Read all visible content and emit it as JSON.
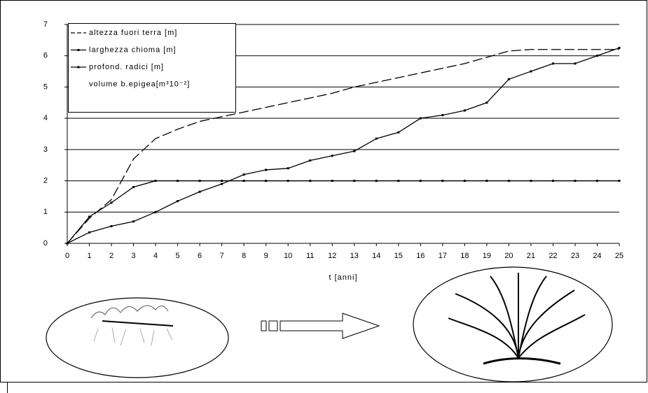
{
  "chart_data": {
    "type": "line",
    "x_label": "t [anni]",
    "x": [
      0,
      1,
      2,
      3,
      4,
      5,
      6,
      7,
      8,
      9,
      10,
      11,
      12,
      13,
      14,
      15,
      16,
      17,
      18,
      19,
      20,
      21,
      22,
      23,
      24,
      25
    ],
    "xlim": [
      0,
      25
    ],
    "xticks": [
      0,
      1,
      2,
      3,
      4,
      5,
      6,
      7,
      8,
      9,
      10,
      11,
      12,
      13,
      14,
      15,
      16,
      17,
      18,
      19,
      20,
      21,
      22,
      23,
      24,
      25
    ],
    "ylim": [
      0,
      7
    ],
    "yticks": [
      0,
      1,
      2,
      3,
      4,
      5,
      6,
      7
    ],
    "grid": true,
    "legend": "top-left",
    "series": [
      {
        "name": "altezza fuori terra [m]",
        "color": "#000000",
        "style": "dashed",
        "values": [
          0,
          0.8,
          1.4,
          2.7,
          3.35,
          3.65,
          3.9,
          4.05,
          4.2,
          4.35,
          4.5,
          4.65,
          4.8,
          5.0,
          5.15,
          5.3,
          5.45,
          5.6,
          5.75,
          5.95,
          6.15,
          6.2,
          6.2,
          6.2,
          6.2,
          6.2
        ]
      },
      {
        "name": "larghezza chioma [m]",
        "color": "#000000",
        "style": "solid",
        "values": [
          0,
          0.35,
          0.55,
          0.7,
          1.0,
          1.35,
          1.65,
          1.9,
          2.2,
          2.35,
          2.4,
          2.65,
          2.8,
          2.95,
          3.35,
          3.55,
          4.0,
          4.1,
          4.25,
          4.5,
          5.25,
          5.5,
          5.75,
          5.75,
          6.0,
          6.25
        ]
      },
      {
        "name": "profond. radici [m]",
        "color": "#000000",
        "style": "solid",
        "values": [
          0,
          0.85,
          1.3,
          1.8,
          2.0,
          2.0,
          2.0,
          2.0,
          2.0,
          2.0,
          2.0,
          2.0,
          2.0,
          2.0,
          2.0,
          2.0,
          2.0,
          2.0,
          2.0,
          2.0,
          2.0,
          2.0,
          2.0,
          2.0,
          2.0,
          2.0
        ]
      },
      {
        "name": "volume b.epigea[m³10⁻²]",
        "color": "#000000",
        "style": "none",
        "values": [
          null,
          null,
          null,
          null,
          null,
          null,
          null,
          null,
          null,
          null,
          null,
          null,
          null,
          null,
          null,
          null,
          null,
          null,
          null,
          null,
          null,
          null,
          null,
          null,
          null,
          null
        ]
      }
    ]
  }
}
